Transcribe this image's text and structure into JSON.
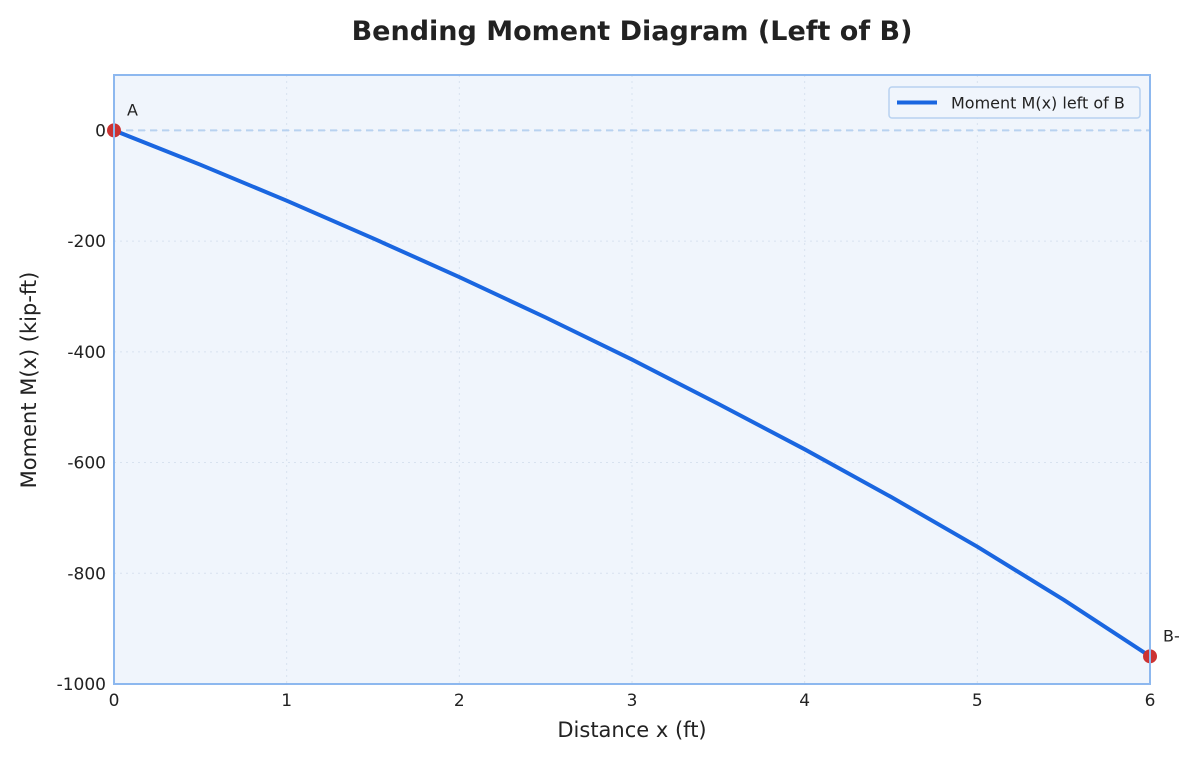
{
  "chart_data": {
    "type": "line",
    "title": "Bending Moment Diagram (Left of B)",
    "xlabel": "Distance x (ft)",
    "ylabel": "Moment M(x) (kip-ft)",
    "xlim": [
      0,
      6
    ],
    "ylim": [
      -1000,
      100
    ],
    "x_ticks": [
      0,
      1,
      2,
      3,
      4,
      5,
      6
    ],
    "x_tick_labels": [
      "0",
      "1",
      "2",
      "3",
      "4",
      "5",
      "6"
    ],
    "y_ticks": [
      0,
      -200,
      -400,
      -600,
      -800,
      -1000
    ],
    "y_tick_labels": [
      "0",
      "-200",
      "-400",
      "-600",
      "-800",
      "-1000"
    ],
    "grid": true,
    "legend_position": "top-right",
    "zero_reference_line": true,
    "series": [
      {
        "name": "Moment M(x) left of B",
        "color": "#1a66e0",
        "x": [
          0,
          0.5,
          1,
          1.5,
          2,
          2.5,
          3,
          3.5,
          4,
          4.5,
          5,
          5.5,
          6
        ],
        "y": [
          0,
          -62,
          -127,
          -195,
          -265,
          -338,
          -414,
          -494,
          -576,
          -662,
          -752,
          -848,
          -950
        ]
      }
    ],
    "points": [
      {
        "label": "A",
        "x": 0,
        "y": 0,
        "color": "#cc3333"
      },
      {
        "label": "B-",
        "x": 6,
        "y": -950,
        "color": "#cc3333"
      }
    ],
    "colors": {
      "plot_background": "#f0f5fc",
      "frame": "#8db8ef",
      "grid": "#d8e2ef",
      "zero_line": "#b8d2f0"
    }
  }
}
